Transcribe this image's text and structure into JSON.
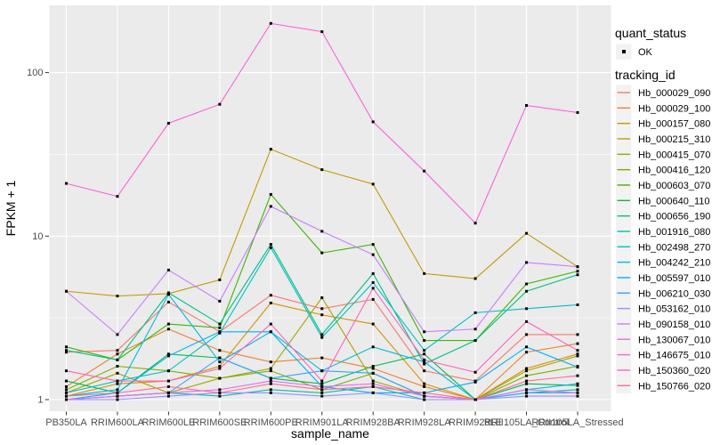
{
  "chart_data": {
    "type": "line",
    "title": "",
    "xlabel": "sample_name",
    "ylabel": "FPKM + 1",
    "y_scale": "log10",
    "y_ticks": [
      1,
      10,
      100
    ],
    "ylim": [
      1,
      260
    ],
    "grid": true,
    "legend_position": "right",
    "legend": {
      "quant_title": "quant_status",
      "quant_items": [
        {
          "label": "OK",
          "marker": "black-point"
        }
      ],
      "tracking_title": "tracking_id"
    },
    "x_categories": [
      "PB350LA",
      "RRIM600LA",
      "RRIM600LE",
      "RRIM600SE",
      "RRIM600PE",
      "RRIM901LA",
      "RRIM928BA",
      "RRIM928LA",
      "RRIM928LE",
      "RRII105LA_Control",
      "RRII105LA_Stressed"
    ],
    "series": [
      {
        "name": "Hb_000029_090",
        "color": "#F8766D",
        "values": [
          1.95,
          2.0,
          3.95,
          2.6,
          4.35,
          3.6,
          4.1,
          1.5,
          1.3,
          2.5,
          2.5
        ]
      },
      {
        "name": "Hb_000029_100",
        "color": "#EA8331",
        "values": [
          1.2,
          1.9,
          2.7,
          2.0,
          1.7,
          1.8,
          1.55,
          1.2,
          1.0,
          1.95,
          2.2
        ]
      },
      {
        "name": "Hb_000157_080",
        "color": "#D89000",
        "values": [
          1.05,
          1.25,
          1.3,
          1.6,
          3.9,
          3.3,
          2.9,
          1.25,
          1.0,
          1.55,
          1.9
        ]
      },
      {
        "name": "Hb_000215_310",
        "color": "#C09B00",
        "values": [
          4.6,
          4.3,
          4.45,
          5.4,
          34,
          25.5,
          20.8,
          5.9,
          5.5,
          10.4,
          6.5
        ]
      },
      {
        "name": "Hb_000415_070",
        "color": "#A3A500",
        "values": [
          1.1,
          1.45,
          1.1,
          1.35,
          1.55,
          4.2,
          1.3,
          1.05,
          1.0,
          1.5,
          1.85
        ]
      },
      {
        "name": "Hb_000416_120",
        "color": "#7CAE00",
        "values": [
          1.15,
          1.6,
          1.5,
          1.35,
          1.5,
          1.15,
          1.45,
          1.05,
          1.0,
          1.4,
          1.6
        ]
      },
      {
        "name": "Hb_000603_070",
        "color": "#39B600",
        "values": [
          2.1,
          1.75,
          2.9,
          2.75,
          18,
          7.9,
          8.9,
          2.3,
          2.3,
          5.1,
          6.1
        ]
      },
      {
        "name": "Hb_000640_110",
        "color": "#00BB4E",
        "values": [
          1.3,
          1.1,
          1.9,
          1.8,
          1.35,
          1.25,
          1.6,
          1.9,
          1.0,
          1.25,
          1.22
        ]
      },
      {
        "name": "Hb_000656_190",
        "color": "#00C087",
        "values": [
          2.0,
          1.75,
          4.5,
          2.9,
          8.9,
          2.5,
          5.9,
          1.65,
          2.3,
          4.6,
          5.8
        ]
      },
      {
        "name": "Hb_001916_080",
        "color": "#00C1A3",
        "values": [
          1.0,
          1.05,
          1.1,
          1.05,
          1.15,
          1.1,
          1.2,
          1.0,
          1.0,
          1.1,
          1.15
        ]
      },
      {
        "name": "Hb_002498_270",
        "color": "#00BFC4",
        "values": [
          1.1,
          1.3,
          1.5,
          2.55,
          8.5,
          2.4,
          5.2,
          2.0,
          3.4,
          3.6,
          3.8
        ]
      },
      {
        "name": "Hb_004242_210",
        "color": "#00BAE0",
        "values": [
          1.05,
          1.15,
          4.4,
          1.7,
          2.6,
          1.5,
          2.1,
          1.7,
          1.0,
          1.15,
          1.25
        ]
      },
      {
        "name": "Hb_005597_010",
        "color": "#00B0F6",
        "values": [
          1.0,
          1.1,
          1.85,
          2.6,
          2.6,
          1.2,
          1.1,
          1.1,
          1.28,
          2.1,
          1.58
        ]
      },
      {
        "name": "Hb_006210_030",
        "color": "#35A2FF",
        "values": [
          1.0,
          1.05,
          1.1,
          1.8,
          1.35,
          1.5,
          1.45,
          1.05,
          1.0,
          1.1,
          1.1
        ]
      },
      {
        "name": "Hb_053162_010",
        "color": "#9590FF",
        "values": [
          1.0,
          1.0,
          1.05,
          1.1,
          1.1,
          1.05,
          1.1,
          1.0,
          1.0,
          1.05,
          1.05
        ]
      },
      {
        "name": "Hb_090158_010",
        "color": "#C77CFF",
        "values": [
          4.6,
          2.5,
          6.2,
          4.0,
          15.2,
          10.7,
          7.7,
          2.6,
          2.7,
          6.9,
          6.5
        ]
      },
      {
        "name": "Hb_130067_010",
        "color": "#E76BF3",
        "values": [
          1.0,
          1.05,
          1.1,
          1.15,
          1.3,
          1.2,
          1.25,
          1.05,
          1.0,
          1.15,
          1.1
        ]
      },
      {
        "name": "Hb_146675_010",
        "color": "#FA62DB",
        "values": [
          21,
          17.5,
          49,
          64,
          200,
          178,
          50,
          25,
          12,
          63,
          57
        ]
      },
      {
        "name": "Hb_150360_020",
        "color": "#FF62BC",
        "values": [
          1.5,
          1.3,
          1.3,
          1.55,
          2.9,
          1.3,
          4.8,
          1.75,
          1.47,
          3.0,
          2.0
        ]
      },
      {
        "name": "Hb_150766_020",
        "color": "#FF6A98",
        "values": [
          1.05,
          1.1,
          1.2,
          1.1,
          1.25,
          1.15,
          1.2,
          1.1,
          1.0,
          1.3,
          1.4
        ]
      }
    ],
    "colors": {
      "panel_bg": "#EBEBEB",
      "gridline": "#FFFFFF",
      "axis_text": "#4D4D4D",
      "axis_title": "#000000",
      "tick_mark": "#333333",
      "point_marker": "#000000",
      "legend_key_bg": "#F2F2F2",
      "legend_text": "#000000"
    }
  }
}
